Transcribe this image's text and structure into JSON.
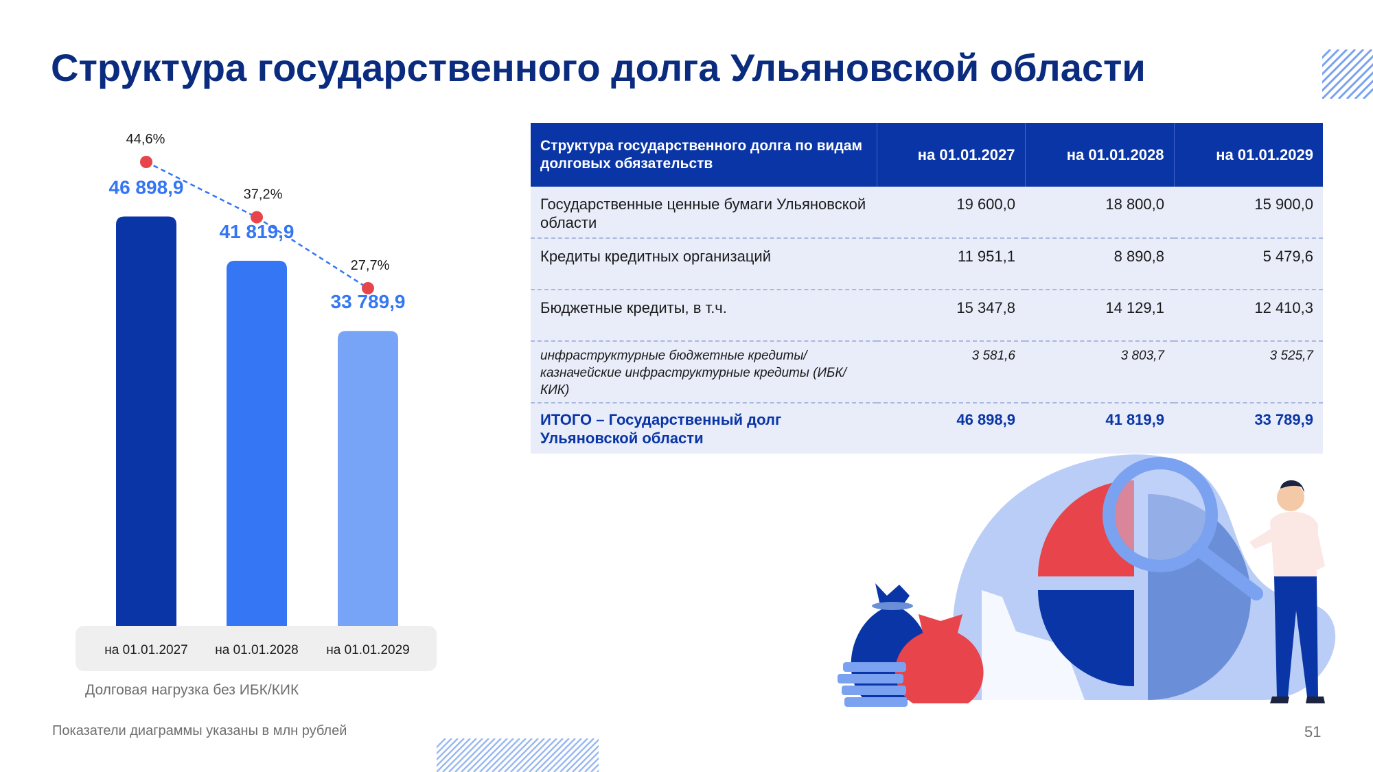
{
  "title": "Структура государственного долга Ульяновской области",
  "chart_data": {
    "type": "bar",
    "categories": [
      "на 01.01.2027",
      "на 01.01.2028",
      "на 01.01.2029"
    ],
    "values": [
      46898.9,
      41819.9,
      33789.9
    ],
    "value_labels": [
      "46 898,9",
      "41 819,9",
      "33 789,9"
    ],
    "bar_colors": [
      "#0a35a6",
      "#3476f4",
      "#78a4f8"
    ],
    "line_series": {
      "name": "Долговая нагрузка без ИБК/КИК",
      "values": [
        44.6,
        37.2,
        27.7
      ],
      "labels": [
        "44,6%",
        "37,2%",
        "27,7%"
      ],
      "color": "#e8444b"
    },
    "ylim": [
      0,
      50000
    ],
    "legend": "Долговая нагрузка без ИБК/КИК"
  },
  "table": {
    "header": {
      "col0": "Структура государственного долга по видам долговых обязательств",
      "col1": "на 01.01.2027",
      "col2": "на 01.01.2028",
      "col3": "на 01.01.2029"
    },
    "rows": [
      {
        "label": "Государственные ценные бумаги Ульяновской области",
        "v1": "19 600,0",
        "v2": "18 800,0",
        "v3": "15 900,0"
      },
      {
        "label": "Кредиты кредитных организаций",
        "v1": "11 951,1",
        "v2": "8 890,8",
        "v3": "5 479,6"
      },
      {
        "label": "Бюджетные кредиты, в т.ч.",
        "v1": "15 347,8",
        "v2": "14 129,1",
        "v3": "12 410,3"
      },
      {
        "label": "инфраструктурные бюджетные кредиты/казначейские инфраструктурные кредиты  (ИБК/КИК)",
        "v1": "3 581,6",
        "v2": "3  803,7",
        "v3": "3  525,7"
      },
      {
        "label": "ИТОГО – Государственный долг Ульяновской области",
        "v1": "46 898,9",
        "v2": "41 819,9",
        "v3": "33 789,9"
      }
    ]
  },
  "footnote": "Показатели диаграммы указаны в млн рублей",
  "page_number": "51",
  "colors": {
    "title": "#0a2b7e",
    "accent": "#0a35a6",
    "red": "#e8444b",
    "light_bg": "#e8edf9"
  }
}
